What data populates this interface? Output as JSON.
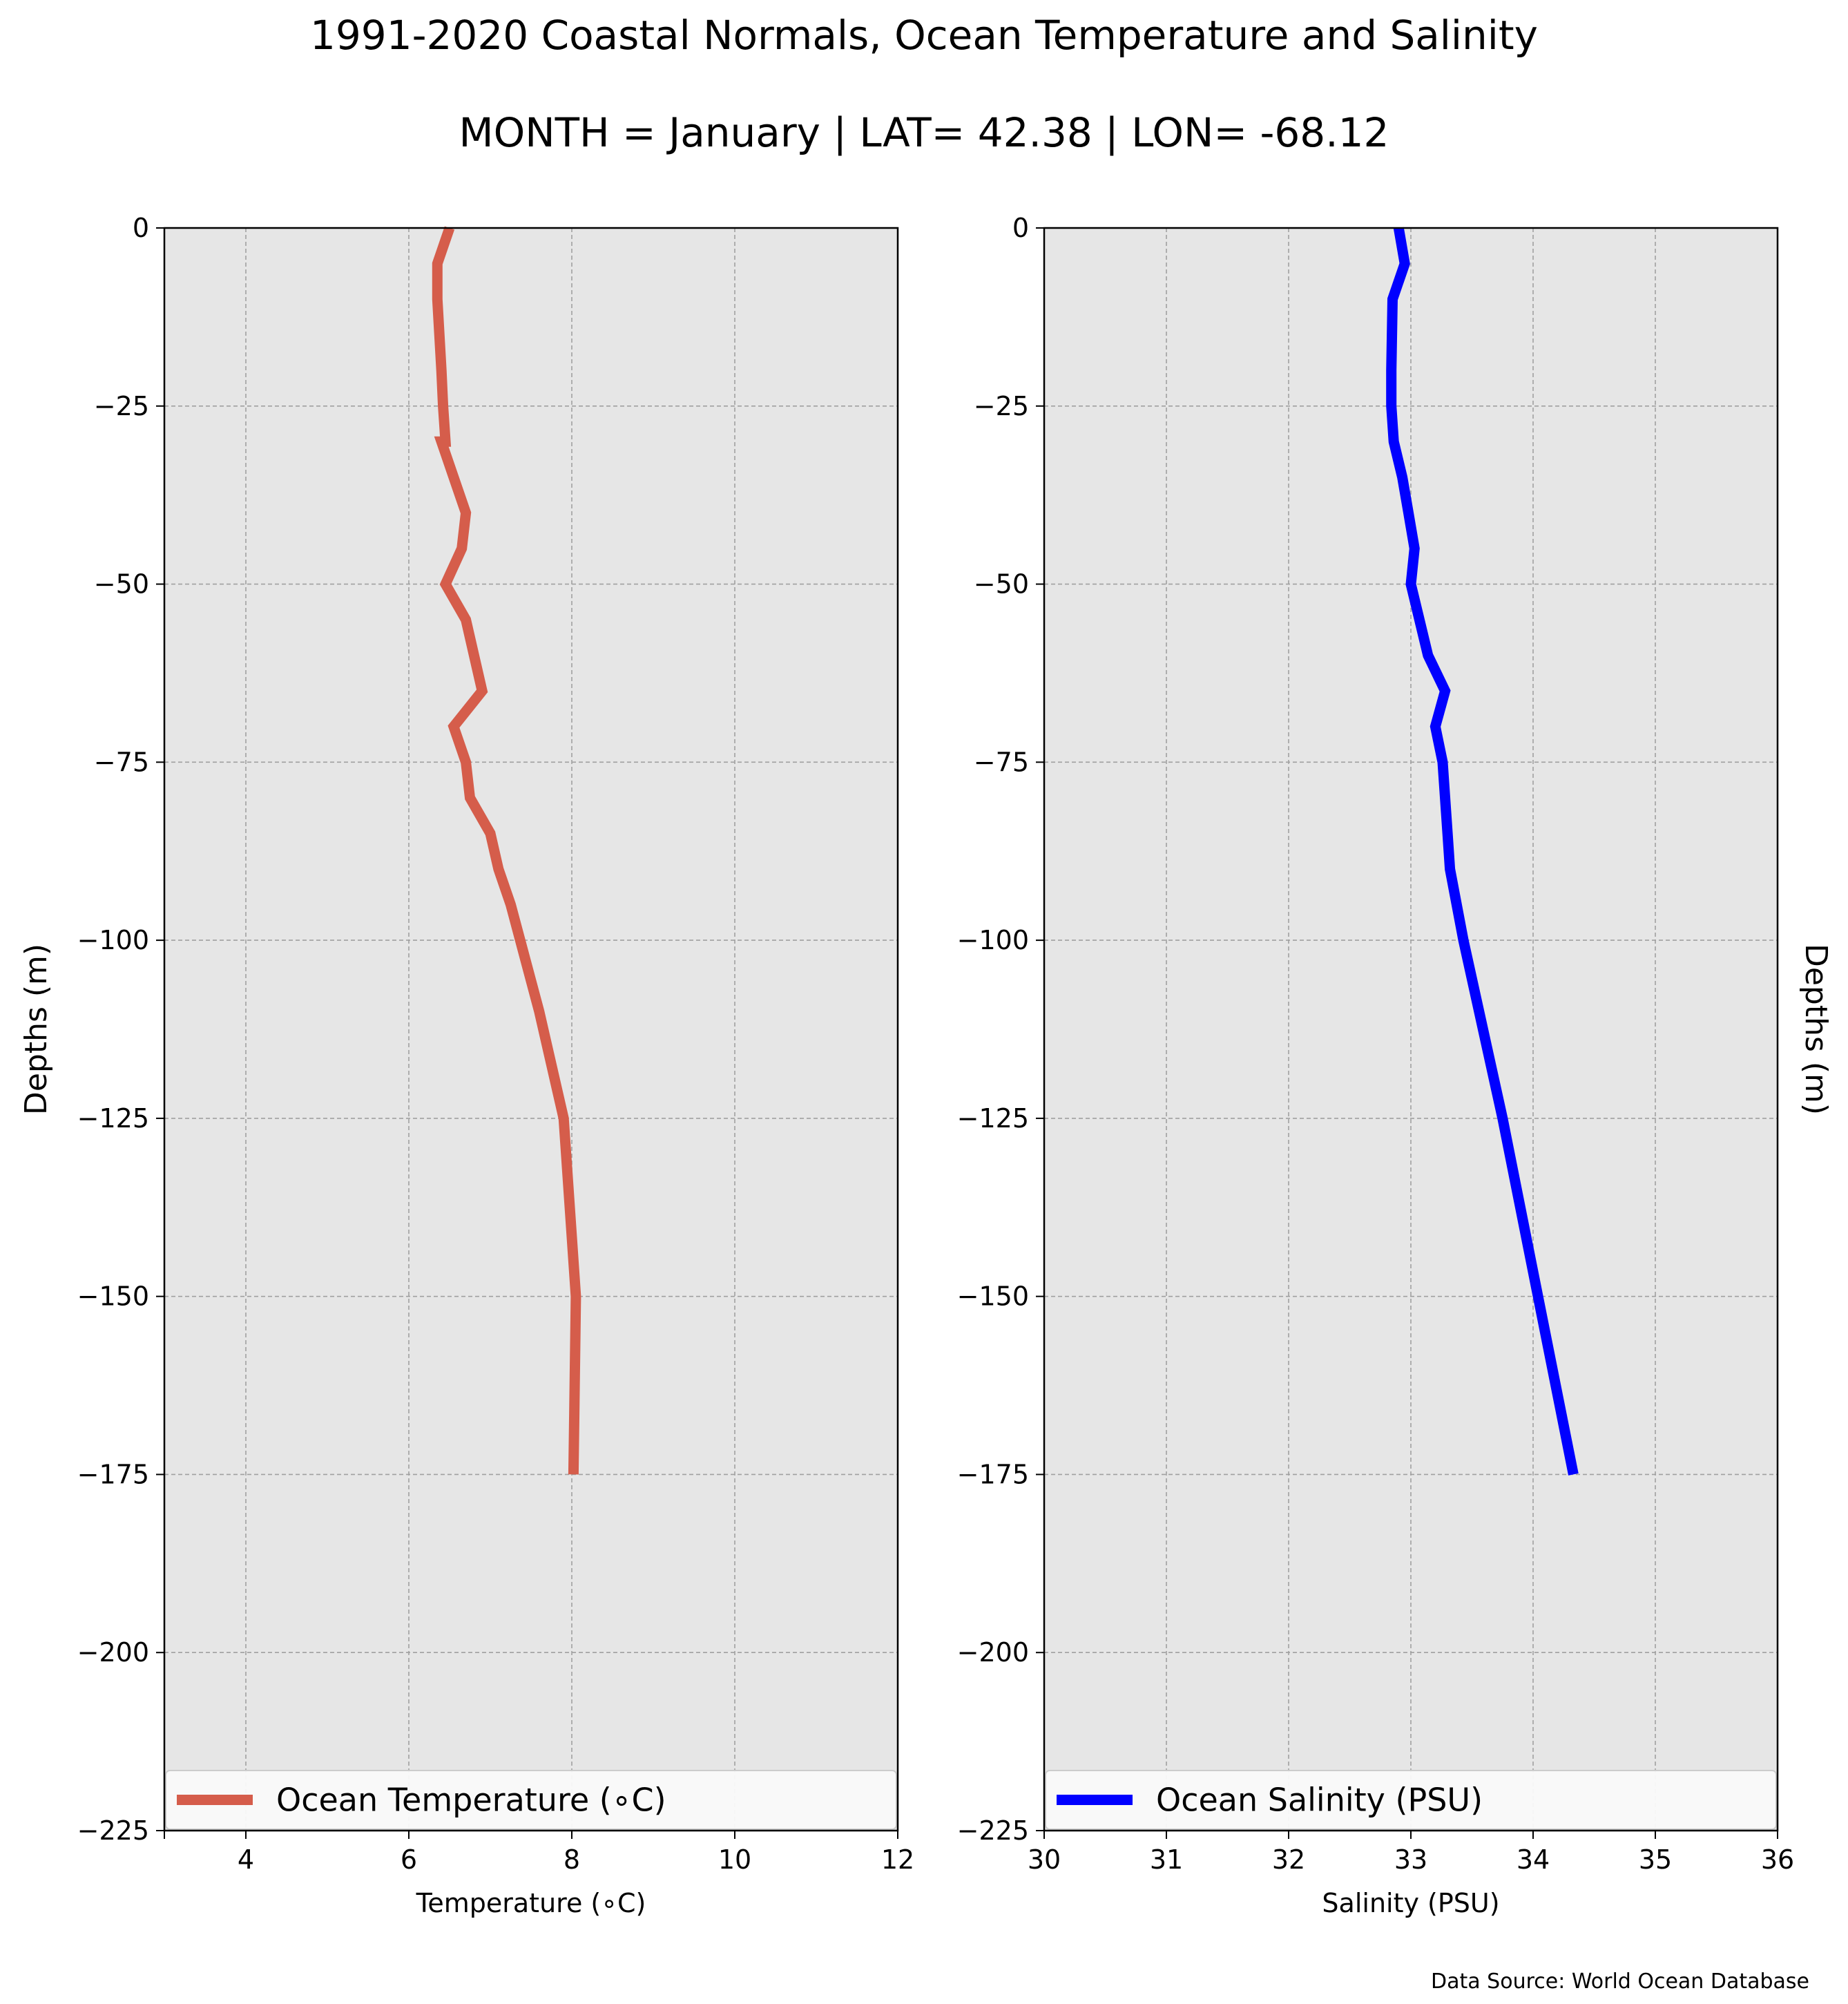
{
  "figure": {
    "title": "1991-2020 Coastal Normals, Ocean Temperature and Salinity",
    "subtitle": "MONTH = January | LAT= 42.38 | LON= -68.12",
    "source": "Data Source: World Ocean Database"
  },
  "chart_data": [
    {
      "type": "line",
      "xlabel": "Temperature (∘C)",
      "ylabel": "Depths (m)",
      "xlim": [
        3,
        12
      ],
      "ylim": [
        -225,
        0
      ],
      "x_ticks": [
        4,
        6,
        8,
        10,
        12
      ],
      "y_ticks": [
        0,
        -25,
        -50,
        -75,
        -100,
        -125,
        -150,
        -175,
        -200,
        -225
      ],
      "grid": true,
      "legend_position": "lower-center",
      "background": "#e6e6e6",
      "series": [
        {
          "name": "Ocean Temperature (∘C)",
          "color": "#d55d4b",
          "x": [
            6.5,
            6.35,
            6.35,
            6.4,
            6.42,
            6.45,
            6.4,
            6.55,
            6.7,
            6.65,
            6.45,
            6.7,
            6.9,
            6.55,
            6.7,
            6.75,
            7.0,
            7.1,
            7.25,
            7.6,
            7.9,
            8.05,
            8.02
          ],
          "y": [
            0,
            -5,
            -10,
            -20,
            -25,
            -30,
            -30,
            -35,
            -40,
            -45,
            -50,
            -55,
            -65,
            -70,
            -75,
            -80,
            -85,
            -90,
            -95,
            -110,
            -125,
            -150,
            -175
          ]
        }
      ]
    },
    {
      "type": "line",
      "xlabel": "Salinity (PSU)",
      "ylabel": "Depths (m)",
      "xlim": [
        30,
        36
      ],
      "ylim": [
        -225,
        0
      ],
      "x_ticks": [
        30,
        31,
        32,
        33,
        34,
        35,
        36
      ],
      "y_ticks": [
        0,
        -25,
        -50,
        -75,
        -100,
        -125,
        -150,
        -175,
        -200,
        -225
      ],
      "grid": true,
      "legend_position": "lower-center",
      "background": "#e6e6e6",
      "series": [
        {
          "name": "Ocean Salinity (PSU)",
          "color": "#0000ff",
          "x": [
            32.9,
            32.95,
            32.85,
            32.84,
            32.84,
            32.86,
            32.93,
            32.98,
            33.03,
            33.0,
            33.14,
            33.28,
            33.2,
            33.26,
            33.3,
            33.32,
            33.43,
            33.75,
            34.04,
            34.33
          ],
          "y": [
            0,
            -5,
            -10,
            -20,
            -25,
            -30,
            -35,
            -40,
            -45,
            -50,
            -60,
            -65,
            -70,
            -75,
            -85,
            -90,
            -100,
            -125,
            -150,
            -175
          ]
        }
      ]
    }
  ]
}
